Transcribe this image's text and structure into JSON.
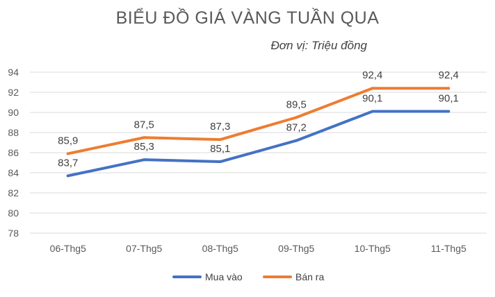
{
  "chart_data": {
    "type": "line",
    "title": "BIỂU ĐỒ GIÁ VÀNG TUẦN QUA",
    "subtitle": "Đơn vị: Triệu đồng",
    "categories": [
      "06-Thg5",
      "07-Thg5",
      "08-Thg5",
      "09-Thg5",
      "10-Thg5",
      "11-Thg5"
    ],
    "series": [
      {
        "name": "Mua vào",
        "color": "#4472C4",
        "values": [
          83.7,
          85.3,
          85.1,
          87.2,
          90.1,
          90.1
        ],
        "labels": [
          "83,7",
          "85,3",
          "85,1",
          "87,2",
          "90,1",
          "90,1"
        ]
      },
      {
        "name": "Bán ra",
        "color": "#ED7D31",
        "values": [
          85.9,
          87.5,
          87.3,
          89.5,
          92.4,
          92.4
        ],
        "labels": [
          "85,9",
          "87,5",
          "87,3",
          "89,5",
          "92,4",
          "92,4"
        ]
      }
    ],
    "ylim": [
      78,
      94
    ],
    "yticks": [
      78,
      80,
      82,
      84,
      86,
      88,
      90,
      92,
      94
    ],
    "grid": true,
    "legend": "bottom"
  }
}
